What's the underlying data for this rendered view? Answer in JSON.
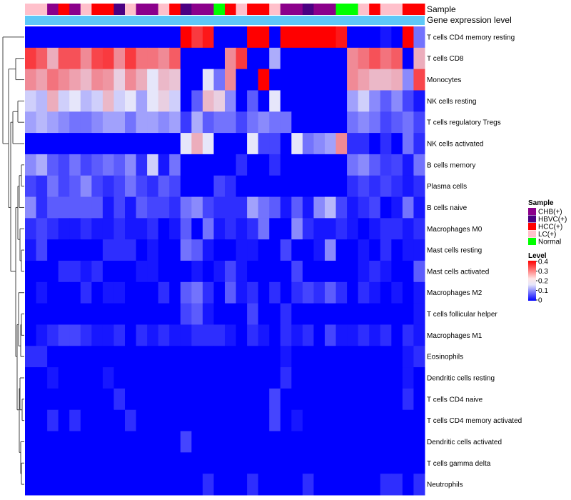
{
  "chart_data": {
    "type": "heatmap",
    "annotation_labels": {
      "sample": "Sample",
      "group": "Gene expression level"
    },
    "rows": [
      "T cells CD4 memory resting",
      "T cells CD8",
      "Monocytes",
      "NK cells resting",
      "T cells regulatory  Tregs",
      "NK cells activated",
      "B cells memory",
      "Plasma cells",
      "B cells naive",
      "Macrophages M0",
      "Mast cells resting",
      "Mast cells activated",
      "Macrophages M2",
      "T cells follicular helper",
      "Macrophages M1",
      "Eosinophils",
      "Dendritic cells resting",
      "T cells CD4 naive",
      "T cells CD4 memory activated",
      "Dendritic cells activated",
      "T cells gamma delta",
      "Neutrophils"
    ],
    "sample_groups": [
      "LC(+)",
      "LC(+)",
      "CHB(+)",
      "HCC(+)",
      "CHB(+)",
      "LC(+)",
      "HCC(+)",
      "HCC(+)",
      "HBVC(+)",
      "LC(+)",
      "CHB(+)",
      "CHB(+)",
      "LC(+)",
      "HCC(+)",
      "HBVC(+)",
      "CHB(+)",
      "CHB(+)",
      "Normal",
      "HCC(+)",
      "LC(+)",
      "HCC(+)",
      "HCC(+)",
      "LC(+)",
      "CHB(+)",
      "CHB(+)",
      "HBVC(+)",
      "CHB(+)",
      "CHB(+)",
      "Normal",
      "Normal",
      "LC(+)",
      "HCC(+)",
      "LC(+)",
      "LC(+)",
      "HCC(+)",
      "HCC(+)"
    ],
    "values": [
      [
        0.0,
        0.0,
        0.0,
        0.0,
        0.0,
        0.0,
        0.0,
        0.0,
        0.0,
        0.0,
        0.0,
        0.0,
        0.0,
        0.0,
        0.4,
        0.35,
        0.38,
        0.0,
        0.0,
        0.0,
        0.4,
        0.4,
        0.0,
        0.4,
        0.4,
        0.4,
        0.4,
        0.4,
        0.38,
        0.0,
        0.0,
        0.0,
        0.02,
        0.0,
        0.4,
        0.1
      ],
      [
        0.35,
        0.32,
        0.25,
        0.33,
        0.33,
        0.28,
        0.34,
        0.35,
        0.28,
        0.35,
        0.3,
        0.3,
        0.28,
        0.32,
        0.0,
        0.0,
        0.0,
        0.0,
        0.28,
        0.35,
        0.0,
        0.0,
        0.15,
        0.0,
        0.0,
        0.0,
        0.0,
        0.0,
        0.0,
        0.28,
        0.3,
        0.33,
        0.3,
        0.32,
        0.0,
        0.25
      ],
      [
        0.28,
        0.26,
        0.3,
        0.28,
        0.26,
        0.24,
        0.28,
        0.27,
        0.22,
        0.28,
        0.25,
        0.2,
        0.24,
        0.23,
        0.0,
        0.0,
        0.2,
        0.1,
        0.28,
        0.0,
        0.0,
        0.4,
        0.0,
        0.0,
        0.0,
        0.0,
        0.0,
        0.0,
        0.0,
        0.28,
        0.26,
        0.24,
        0.24,
        0.25,
        0.12,
        0.34
      ],
      [
        0.18,
        0.16,
        0.25,
        0.18,
        0.2,
        0.16,
        0.18,
        0.24,
        0.18,
        0.2,
        0.14,
        0.2,
        0.22,
        0.18,
        0.0,
        0.08,
        0.24,
        0.22,
        0.12,
        0.0,
        0.08,
        0.0,
        0.2,
        0.0,
        0.0,
        0.0,
        0.0,
        0.0,
        0.0,
        0.14,
        0.18,
        0.12,
        0.08,
        0.12,
        0.06,
        0.02
      ],
      [
        0.14,
        0.16,
        0.14,
        0.12,
        0.1,
        0.1,
        0.12,
        0.14,
        0.14,
        0.1,
        0.14,
        0.14,
        0.12,
        0.14,
        0.05,
        0.15,
        0.08,
        0.1,
        0.1,
        0.06,
        0.1,
        0.12,
        0.1,
        0.1,
        0.0,
        0.0,
        0.0,
        0.0,
        0.0,
        0.1,
        0.12,
        0.1,
        0.06,
        0.08,
        0.1,
        0.06
      ],
      [
        0.0,
        0.0,
        0.0,
        0.0,
        0.0,
        0.0,
        0.0,
        0.0,
        0.0,
        0.0,
        0.0,
        0.0,
        0.0,
        0.0,
        0.2,
        0.25,
        0.2,
        0.0,
        0.0,
        0.0,
        0.2,
        0.06,
        0.06,
        0.0,
        0.2,
        0.1,
        0.12,
        0.14,
        0.28,
        0.04,
        0.04,
        0.0,
        0.04,
        0.0,
        0.1,
        0.04
      ],
      [
        0.12,
        0.15,
        0.08,
        0.06,
        0.1,
        0.06,
        0.08,
        0.1,
        0.08,
        0.12,
        0.04,
        0.18,
        0.02,
        0.1,
        0.0,
        0.0,
        0.0,
        0.0,
        0.0,
        0.04,
        0.0,
        0.0,
        0.04,
        0.0,
        0.0,
        0.0,
        0.0,
        0.0,
        0.0,
        0.1,
        0.12,
        0.08,
        0.05,
        0.06,
        0.02,
        0.1
      ],
      [
        0.06,
        0.04,
        0.1,
        0.06,
        0.08,
        0.12,
        0.06,
        0.04,
        0.06,
        0.1,
        0.06,
        0.04,
        0.08,
        0.06,
        0.0,
        0.0,
        0.0,
        0.06,
        0.04,
        0.0,
        0.0,
        0.0,
        0.0,
        0.0,
        0.0,
        0.0,
        0.0,
        0.0,
        0.0,
        0.04,
        0.06,
        0.04,
        0.06,
        0.04,
        0.02,
        0.04
      ],
      [
        0.12,
        0.04,
        0.08,
        0.08,
        0.08,
        0.08,
        0.08,
        0.02,
        0.06,
        0.02,
        0.08,
        0.06,
        0.06,
        0.04,
        0.1,
        0.12,
        0.06,
        0.04,
        0.04,
        0.04,
        0.14,
        0.1,
        0.08,
        0.02,
        0.08,
        0.02,
        0.12,
        0.16,
        0.06,
        0.02,
        0.04,
        0.06,
        0.0,
        0.02,
        0.1,
        0.02
      ],
      [
        0.04,
        0.06,
        0.04,
        0.02,
        0.02,
        0.04,
        0.02,
        0.02,
        0.04,
        0.02,
        0.02,
        0.04,
        0.0,
        0.02,
        0.08,
        0.0,
        0.1,
        0.02,
        0.04,
        0.02,
        0.04,
        0.1,
        0.0,
        0.0,
        0.12,
        0.04,
        0.02,
        0.02,
        0.04,
        0.02,
        0.0,
        0.02,
        0.04,
        0.04,
        0.02,
        0.04
      ],
      [
        0.02,
        0.06,
        0.0,
        0.0,
        0.0,
        0.0,
        0.0,
        0.04,
        0.04,
        0.04,
        0.0,
        0.02,
        0.0,
        0.0,
        0.1,
        0.08,
        0.02,
        0.0,
        0.0,
        0.02,
        0.02,
        0.0,
        0.0,
        0.06,
        0.0,
        0.0,
        0.02,
        0.12,
        0.0,
        0.0,
        0.02,
        0.0,
        0.04,
        0.0,
        0.02,
        0.02
      ],
      [
        0.0,
        0.0,
        0.0,
        0.04,
        0.04,
        0.02,
        0.04,
        0.0,
        0.0,
        0.0,
        0.02,
        0.02,
        0.0,
        0.0,
        0.0,
        0.02,
        0.0,
        0.02,
        0.06,
        0.02,
        0.0,
        0.0,
        0.0,
        0.0,
        0.06,
        0.0,
        0.0,
        0.0,
        0.0,
        0.0,
        0.02,
        0.04,
        0.02,
        0.0,
        0.0,
        0.08
      ],
      [
        0.0,
        0.02,
        0.0,
        0.0,
        0.0,
        0.04,
        0.0,
        0.02,
        0.02,
        0.0,
        0.0,
        0.0,
        0.04,
        0.0,
        0.08,
        0.1,
        0.04,
        0.0,
        0.08,
        0.02,
        0.04,
        0.0,
        0.04,
        0.0,
        0.04,
        0.06,
        0.04,
        0.08,
        0.04,
        0.0,
        0.04,
        0.02,
        0.0,
        0.02,
        0.0,
        0.02
      ],
      [
        0.0,
        0.0,
        0.0,
        0.0,
        0.0,
        0.0,
        0.0,
        0.0,
        0.0,
        0.0,
        0.0,
        0.0,
        0.0,
        0.0,
        0.06,
        0.08,
        0.02,
        0.0,
        0.0,
        0.0,
        0.06,
        0.0,
        0.0,
        0.04,
        0.0,
        0.0,
        0.0,
        0.0,
        0.0,
        0.0,
        0.0,
        0.0,
        0.0,
        0.0,
        0.0,
        0.02
      ],
      [
        0.0,
        0.02,
        0.04,
        0.06,
        0.06,
        0.04,
        0.02,
        0.02,
        0.04,
        0.0,
        0.04,
        0.02,
        0.04,
        0.02,
        0.02,
        0.04,
        0.04,
        0.04,
        0.02,
        0.0,
        0.04,
        0.02,
        0.0,
        0.04,
        0.02,
        0.04,
        0.0,
        0.06,
        0.02,
        0.02,
        0.04,
        0.02,
        0.04,
        0.0,
        0.04,
        0.02
      ],
      [
        0.04,
        0.04,
        0.0,
        0.0,
        0.0,
        0.0,
        0.0,
        0.0,
        0.0,
        0.0,
        0.0,
        0.0,
        0.0,
        0.0,
        0.0,
        0.0,
        0.0,
        0.0,
        0.0,
        0.0,
        0.0,
        0.0,
        0.0,
        0.02,
        0.0,
        0.0,
        0.0,
        0.0,
        0.0,
        0.0,
        0.0,
        0.0,
        0.0,
        0.0,
        0.02,
        0.04
      ],
      [
        0.0,
        0.0,
        0.02,
        0.0,
        0.0,
        0.0,
        0.0,
        0.02,
        0.0,
        0.0,
        0.0,
        0.0,
        0.0,
        0.0,
        0.0,
        0.0,
        0.0,
        0.0,
        0.0,
        0.0,
        0.0,
        0.0,
        0.0,
        0.04,
        0.0,
        0.0,
        0.0,
        0.0,
        0.0,
        0.0,
        0.0,
        0.0,
        0.0,
        0.0,
        0.02,
        0.0
      ],
      [
        0.0,
        0.0,
        0.0,
        0.0,
        0.0,
        0.0,
        0.0,
        0.0,
        0.04,
        0.0,
        0.0,
        0.0,
        0.0,
        0.0,
        0.0,
        0.0,
        0.0,
        0.0,
        0.0,
        0.0,
        0.0,
        0.0,
        0.06,
        0.0,
        0.0,
        0.0,
        0.0,
        0.0,
        0.0,
        0.0,
        0.0,
        0.0,
        0.0,
        0.0,
        0.04,
        0.0
      ],
      [
        0.0,
        0.0,
        0.04,
        0.0,
        0.04,
        0.0,
        0.0,
        0.0,
        0.0,
        0.04,
        0.0,
        0.0,
        0.0,
        0.0,
        0.0,
        0.0,
        0.0,
        0.0,
        0.0,
        0.0,
        0.0,
        0.0,
        0.06,
        0.0,
        0.02,
        0.0,
        0.0,
        0.0,
        0.0,
        0.0,
        0.0,
        0.0,
        0.0,
        0.0,
        0.0,
        0.0
      ],
      [
        0.0,
        0.0,
        0.0,
        0.0,
        0.0,
        0.0,
        0.0,
        0.0,
        0.0,
        0.0,
        0.0,
        0.0,
        0.0,
        0.0,
        0.06,
        0.0,
        0.0,
        0.0,
        0.0,
        0.0,
        0.0,
        0.0,
        0.0,
        0.0,
        0.0,
        0.0,
        0.0,
        0.0,
        0.0,
        0.0,
        0.0,
        0.0,
        0.0,
        0.0,
        0.0,
        0.0
      ],
      [
        0.0,
        0.0,
        0.0,
        0.0,
        0.0,
        0.0,
        0.0,
        0.0,
        0.0,
        0.0,
        0.0,
        0.0,
        0.0,
        0.0,
        0.0,
        0.0,
        0.0,
        0.0,
        0.0,
        0.0,
        0.0,
        0.0,
        0.0,
        0.0,
        0.0,
        0.0,
        0.0,
        0.0,
        0.0,
        0.0,
        0.0,
        0.0,
        0.0,
        0.0,
        0.0,
        0.0
      ],
      [
        0.0,
        0.0,
        0.0,
        0.0,
        0.0,
        0.0,
        0.0,
        0.0,
        0.0,
        0.0,
        0.0,
        0.0,
        0.0,
        0.0,
        0.0,
        0.0,
        0.04,
        0.0,
        0.0,
        0.0,
        0.04,
        0.0,
        0.0,
        0.0,
        0.0,
        0.04,
        0.0,
        0.0,
        0.0,
        0.0,
        0.0,
        0.0,
        0.04,
        0.04,
        0.0,
        0.04
      ]
    ],
    "color_scale": {
      "min": 0,
      "max": 0.4,
      "low": "#0000ff",
      "mid": "#e6e6fa",
      "high": "#ff0000"
    },
    "legend_sample": {
      "title": "Sample",
      "items": [
        {
          "label": "CHB(+)",
          "color": "#8b008b"
        },
        {
          "label": "HBVC(+)",
          "color": "#4b0082"
        },
        {
          "label": "HCC(+)",
          "color": "#ff0000"
        },
        {
          "label": "LC(+)",
          "color": "#ffc0cb"
        },
        {
          "label": "Normal",
          "color": "#00ff00"
        }
      ]
    },
    "legend_level": {
      "title": "Level",
      "ticks": [
        "0.4",
        "0.3",
        "0.2",
        "0.1",
        "0"
      ]
    },
    "group_color": "#5ec8f8"
  }
}
